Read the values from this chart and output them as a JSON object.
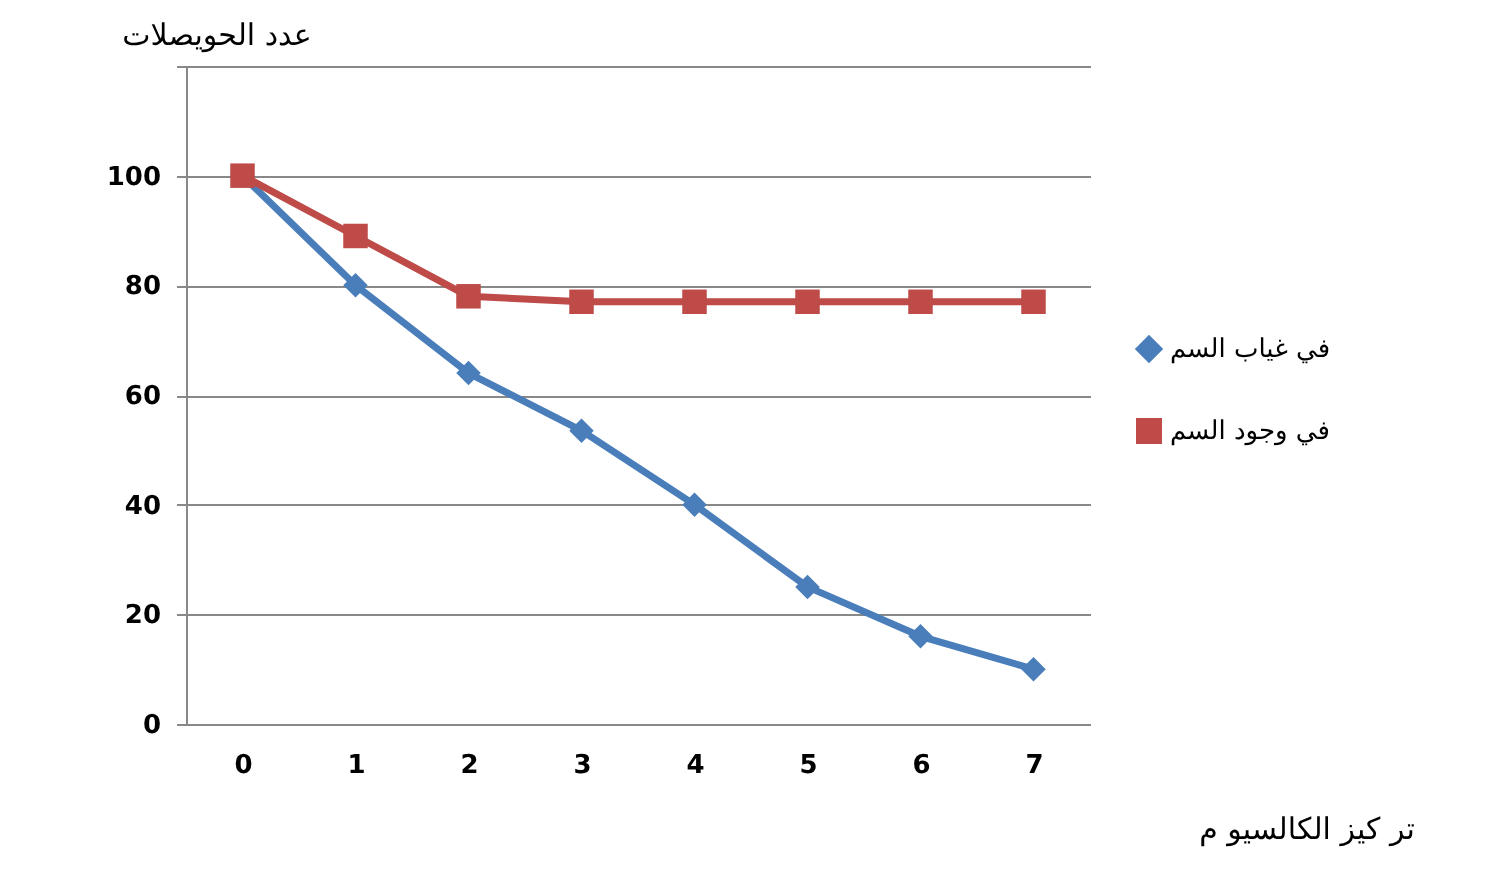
{
  "chart_data": {
    "type": "line",
    "xlabel": "تر كيز  الكالسيو م",
    "ylabel": "عدد الحويصلات",
    "categories": [
      "0",
      "1",
      "2",
      "3",
      "4",
      "5",
      "6",
      "7"
    ],
    "series": [
      {
        "name": "في غياب السم",
        "color": "#4a7ebb",
        "marker": "diamond",
        "values": [
          100,
          80,
          64,
          53.5,
          40,
          25,
          16,
          10
        ]
      },
      {
        "name": "في وجود السم",
        "color": "#be4b48",
        "marker": "square",
        "values": [
          100,
          89,
          78,
          77,
          77,
          77,
          77,
          77
        ]
      }
    ],
    "ylim": [
      0,
      120
    ],
    "yticks": [
      0,
      20,
      40,
      60,
      80,
      100,
      {
        "value": 120,
        "label": null
      }
    ],
    "grid": "y",
    "legend": "right",
    "line_style": "solid"
  }
}
